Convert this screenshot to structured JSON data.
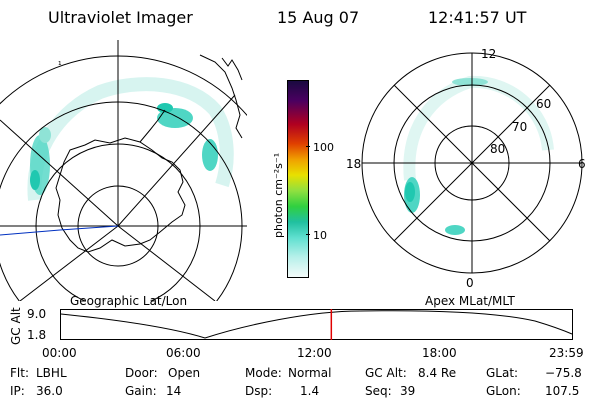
{
  "header": {
    "instrument": "Ultraviolet Imager",
    "date": "15 Aug 07",
    "time": "12:41:57 UT"
  },
  "colorbar": {
    "unit_label": "photon cm⁻²s⁻¹",
    "ticks": [
      "100",
      "10"
    ]
  },
  "left_panel": {
    "caption": "Geographic Lat/Lon"
  },
  "right_panel": {
    "caption": "Apex MLat/MLT",
    "mlt_labels": [
      "12",
      "18",
      "6",
      "0"
    ],
    "lat_labels": [
      "60",
      "70",
      "80"
    ]
  },
  "altitude_plot": {
    "ylabel": "GC Alt",
    "ticks": [
      "9.0",
      "1.8"
    ],
    "time_ticks": [
      "00:00",
      "06:00",
      "12:00",
      "18:00",
      "23:59"
    ],
    "current_marker_fraction": 0.529
  },
  "status": {
    "flt_label": "Flt:",
    "flt_value": "LBHL",
    "ip_label": "IP:",
    "ip_value": "36.0",
    "door_label": "Door:",
    "door_value": "Open",
    "gain_label": "Gain:",
    "gain_value": "14",
    "mode_label": "Mode:",
    "mode_value": "Normal",
    "dsp_label": "Dsp:",
    "dsp_value": "1.4",
    "gcalt_label": "GC Alt:",
    "gcalt_value": "8.4 Re",
    "seq_label": "Seq:",
    "seq_value": "39",
    "glat_label": "GLat:",
    "glat_value": "−75.8",
    "glon_label": "GLon:",
    "glon_value": "107.5"
  },
  "colors": {
    "aurora_low": "#bfeee8",
    "aurora_mid": "#4fd6c4",
    "aurora_high": "#20c8b0",
    "marker": "#e00000",
    "track_line": "#0030c0"
  }
}
